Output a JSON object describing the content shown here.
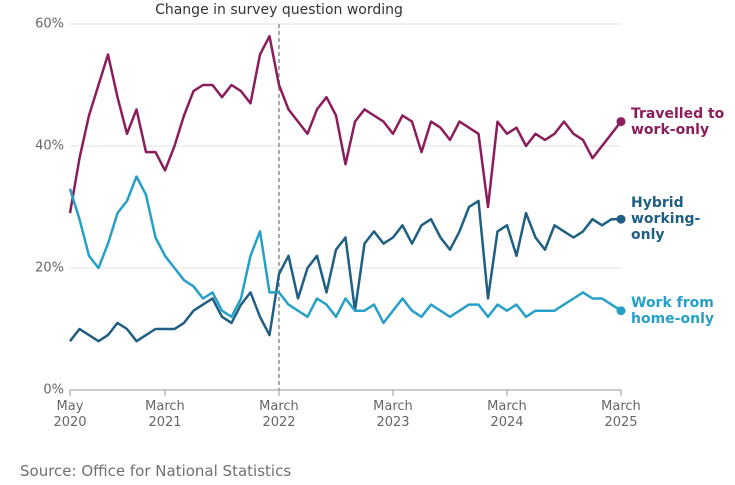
{
  "chart_data": {
    "type": "line",
    "annotation": {
      "text": "Change in survey question wording",
      "x": "2022-03"
    },
    "source": "Source: Office for National Statistics",
    "x": [
      "2020-05",
      "2020-06",
      "2020-07",
      "2020-08",
      "2020-09",
      "2020-10",
      "2020-11",
      "2020-12",
      "2021-01",
      "2021-02",
      "2021-03",
      "2021-04",
      "2021-05",
      "2021-06",
      "2021-07",
      "2021-08",
      "2021-09",
      "2021-10",
      "2021-11",
      "2021-12",
      "2022-01",
      "2022-02",
      "2022-03",
      "2022-04",
      "2022-05",
      "2022-06",
      "2022-07",
      "2022-08",
      "2022-09",
      "2022-10",
      "2022-11",
      "2022-12",
      "2023-01",
      "2023-02",
      "2023-03",
      "2023-04",
      "2023-05",
      "2023-06",
      "2023-07",
      "2023-08",
      "2023-09",
      "2023-10",
      "2023-11",
      "2023-12",
      "2024-01",
      "2024-02",
      "2024-03",
      "2024-04",
      "2024-05",
      "2024-06",
      "2024-07",
      "2024-08",
      "2024-09",
      "2024-10",
      "2024-11",
      "2024-12",
      "2025-01",
      "2025-02",
      "2025-03"
    ],
    "xlim": [
      "2020-05",
      "2025-03"
    ],
    "xticks": [
      {
        "value": "2020-05",
        "label": [
          "May",
          "2020"
        ]
      },
      {
        "value": "2021-03",
        "label": [
          "March",
          "2021"
        ]
      },
      {
        "value": "2022-03",
        "label": [
          "March",
          "2022"
        ]
      },
      {
        "value": "2023-03",
        "label": [
          "March",
          "2023"
        ]
      },
      {
        "value": "2024-03",
        "label": [
          "March",
          "2024"
        ]
      },
      {
        "value": "2025-03",
        "label": [
          "March",
          "2025"
        ]
      }
    ],
    "ylim": [
      0,
      60
    ],
    "yticks": [
      {
        "value": 0,
        "label": "0%"
      },
      {
        "value": 20,
        "label": "20%"
      },
      {
        "value": 40,
        "label": "40%"
      },
      {
        "value": 60,
        "label": "60%"
      }
    ],
    "grid": true,
    "series": [
      {
        "name": "Travelled to work-only",
        "color": "#8c1d5c",
        "values": [
          29,
          38,
          45,
          50,
          55,
          48,
          42,
          46,
          39,
          39,
          36,
          40,
          45,
          49,
          50,
          50,
          48,
          50,
          49,
          47,
          55,
          58,
          50,
          46,
          44,
          42,
          46,
          48,
          45,
          37,
          44,
          46,
          45,
          44,
          42,
          45,
          44,
          39,
          44,
          43,
          41,
          44,
          43,
          42,
          30,
          44,
          42,
          43,
          40,
          42,
          41,
          42,
          44,
          42,
          41,
          38,
          40,
          42,
          44
        ]
      },
      {
        "name": "Hybrid working-only",
        "color": "#1f5f84",
        "values": [
          8,
          10,
          9,
          8,
          9,
          11,
          10,
          8,
          9,
          10,
          10,
          10,
          11,
          13,
          14,
          15,
          12,
          11,
          14,
          16,
          12,
          9,
          19,
          22,
          15,
          20,
          22,
          16,
          23,
          25,
          13,
          24,
          26,
          24,
          25,
          27,
          24,
          27,
          28,
          25,
          23,
          26,
          30,
          31,
          15,
          26,
          27,
          22,
          29,
          25,
          23,
          27,
          26,
          25,
          26,
          28,
          27,
          28,
          28
        ]
      },
      {
        "name": "Work from home-only",
        "color": "#27a0c8",
        "values": [
          33,
          28,
          22,
          20,
          24,
          29,
          31,
          35,
          32,
          25,
          22,
          20,
          18,
          17,
          15,
          16,
          13,
          12,
          15,
          22,
          26,
          16,
          16,
          14,
          13,
          12,
          15,
          14,
          12,
          15,
          13,
          13,
          14,
          11,
          13,
          15,
          13,
          12,
          14,
          13,
          12,
          13,
          14,
          14,
          12,
          14,
          13,
          14,
          12,
          13,
          13,
          13,
          14,
          15,
          16,
          15,
          15,
          14,
          13
        ]
      }
    ]
  }
}
